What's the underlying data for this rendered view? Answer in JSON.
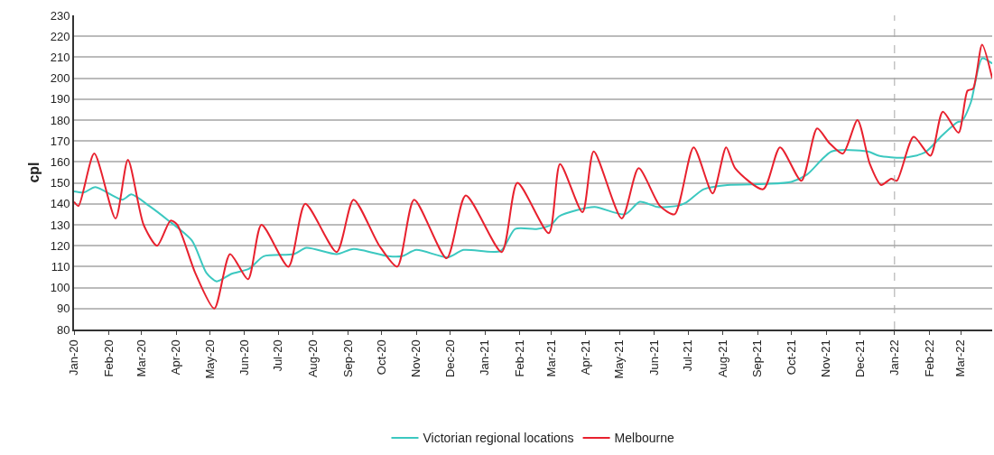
{
  "chart_data": {
    "type": "line",
    "ylabel": "cpl",
    "xlim": [
      "2020-01-01",
      "2022-03-29"
    ],
    "xticks": [
      {
        "value": "2020-01",
        "label": "Jan-20"
      },
      {
        "value": "2020-02",
        "label": "Feb-20"
      },
      {
        "value": "2020-03",
        "label": "Mar-20"
      },
      {
        "value": "2020-04",
        "label": "Apr-20"
      },
      {
        "value": "2020-05",
        "label": "May-20"
      },
      {
        "value": "2020-06",
        "label": "Jun-20"
      },
      {
        "value": "2020-07",
        "label": "Jul-20"
      },
      {
        "value": "2020-08",
        "label": "Aug-20"
      },
      {
        "value": "2020-09",
        "label": "Sep-20"
      },
      {
        "value": "2020-10",
        "label": "Oct-20"
      },
      {
        "value": "2020-11",
        "label": "Nov-20"
      },
      {
        "value": "2020-12",
        "label": "Dec-20"
      },
      {
        "value": "2021-01",
        "label": "Jan-21"
      },
      {
        "value": "2021-02",
        "label": "Feb-21"
      },
      {
        "value": "2021-03",
        "label": "Mar-21"
      },
      {
        "value": "2021-04",
        "label": "Apr-21"
      },
      {
        "value": "2021-05",
        "label": "May-21"
      },
      {
        "value": "2021-06",
        "label": "Jun-21"
      },
      {
        "value": "2021-07",
        "label": "Jul-21"
      },
      {
        "value": "2021-08",
        "label": "Aug-21"
      },
      {
        "value": "2021-09",
        "label": "Sep-21"
      },
      {
        "value": "2021-10",
        "label": "Oct-21"
      },
      {
        "value": "2021-11",
        "label": "Nov-21"
      },
      {
        "value": "2021-12",
        "label": "Dec-21"
      },
      {
        "value": "2022-01",
        "label": "Jan-22"
      },
      {
        "value": "2022-02",
        "label": "Feb-22"
      },
      {
        "value": "2022-03",
        "label": "Mar-22"
      }
    ],
    "ylim": [
      80,
      230
    ],
    "yticks": [
      80,
      90,
      100,
      110,
      120,
      130,
      140,
      150,
      160,
      170,
      180,
      190,
      200,
      210,
      220,
      230
    ],
    "grid": "y",
    "legend": "bottom",
    "marker": "none",
    "line_style": "solid",
    "ref_lines": [
      {
        "axis": "x",
        "value": "2022-01-01",
        "color": "#a6a6a6",
        "line_style": "dashed"
      }
    ],
    "series": [
      {
        "name": "Victorian regional locations",
        "color": "#3cc8c0",
        "x": [
          "2020-01-01",
          "2020-01-10",
          "2020-01-20",
          "2020-02-13",
          "2020-02-21",
          "2020-03-08",
          "2020-03-24",
          "2020-04-15",
          "2020-04-28",
          "2020-05-07",
          "2020-05-20",
          "2020-06-05",
          "2020-06-18",
          "2020-07-15",
          "2020-07-26",
          "2020-08-22",
          "2020-09-06",
          "2020-10-07",
          "2020-10-19",
          "2020-11-01",
          "2020-11-29",
          "2020-12-13",
          "2021-01-15",
          "2021-01-28",
          "2021-02-16",
          "2021-03-01",
          "2021-03-08",
          "2021-03-24",
          "2021-04-09",
          "2021-05-06",
          "2021-05-19",
          "2021-06-04",
          "2021-06-21",
          "2021-06-29",
          "2021-07-15",
          "2021-08-05",
          "2021-09-08",
          "2021-10-01",
          "2021-10-15",
          "2021-11-06",
          "2021-12-08",
          "2021-12-18",
          "2022-01-09",
          "2022-01-28",
          "2022-02-13",
          "2022-02-26",
          "2022-03-02",
          "2022-03-10",
          "2022-03-20",
          "2022-03-29"
        ],
        "values": [
          146,
          145.5,
          148,
          142,
          144.5,
          139,
          132.5,
          122.5,
          107,
          103,
          106.5,
          109,
          115,
          116,
          119,
          116,
          118.5,
          115,
          115,
          118,
          114.5,
          118,
          117.5,
          128,
          128,
          130,
          134,
          137,
          138.5,
          135,
          141,
          138.5,
          139,
          140.5,
          147,
          149,
          149.5,
          150.5,
          154,
          165,
          165,
          163,
          162,
          164.5,
          173,
          179,
          179.5,
          188.5,
          209.5,
          207
        ]
      },
      {
        "name": "Melbourne",
        "color": "#e8212e",
        "x": [
          "2020-01-01",
          "2020-01-05",
          "2020-01-19",
          "2020-02-07",
          "2020-02-18",
          "2020-03-03",
          "2020-03-15",
          "2020-03-27",
          "2020-04-02",
          "2020-04-18",
          "2020-05-05",
          "2020-05-19",
          "2020-06-04",
          "2020-06-16",
          "2020-07-10",
          "2020-07-25",
          "2020-08-22",
          "2020-09-06",
          "2020-09-29",
          "2020-10-15",
          "2020-10-30",
          "2020-11-28",
          "2020-12-15",
          "2021-01-16",
          "2021-01-30",
          "2021-02-27",
          "2021-03-09",
          "2021-03-29",
          "2021-04-08",
          "2021-05-03",
          "2021-05-18",
          "2021-06-06",
          "2021-06-19",
          "2021-07-06",
          "2021-07-23",
          "2021-08-04",
          "2021-08-12",
          "2021-09-06",
          "2021-09-21",
          "2021-10-10",
          "2021-10-24",
          "2021-11-04",
          "2021-11-16",
          "2021-11-29",
          "2021-12-10",
          "2021-12-20",
          "2021-12-29",
          "2022-01-03",
          "2022-01-18",
          "2022-02-02",
          "2022-02-13",
          "2022-02-27",
          "2022-03-07",
          "2022-03-12",
          "2022-03-20",
          "2022-03-29"
        ],
        "values": [
          141,
          139,
          164,
          133,
          161,
          130,
          120,
          132,
          130,
          107,
          90,
          116,
          104,
          130,
          110,
          140,
          117,
          142,
          120,
          110,
          142,
          114,
          144,
          117,
          150,
          126,
          159,
          136,
          165,
          133,
          157,
          139,
          135,
          167,
          145,
          167,
          157,
          147,
          167,
          151,
          176,
          169,
          164,
          180,
          159,
          149,
          152,
          151,
          172,
          163,
          184,
          174,
          194,
          195,
          216,
          200
        ]
      }
    ]
  }
}
